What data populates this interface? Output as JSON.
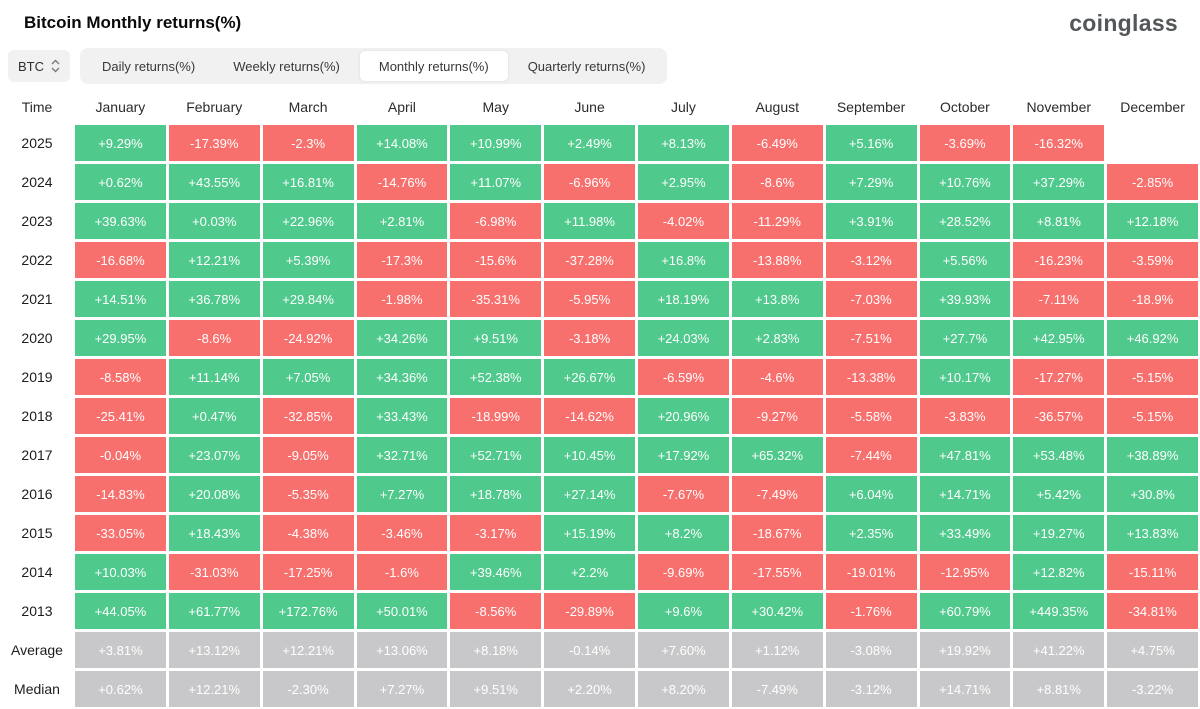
{
  "page": {
    "title": "Bitcoin Monthly returns(%)",
    "logo": "coinglass"
  },
  "controls": {
    "symbol_select": {
      "value": "BTC"
    },
    "tabs": [
      {
        "label": "Daily returns(%)",
        "active": false
      },
      {
        "label": "Weekly returns(%)",
        "active": false
      },
      {
        "label": "Monthly returns(%)",
        "active": true
      },
      {
        "label": "Quarterly returns(%)",
        "active": false
      }
    ]
  },
  "chart_data": {
    "type": "heatmap",
    "title": "Bitcoin Monthly returns(%)",
    "row_header": "Time",
    "columns": [
      "January",
      "February",
      "March",
      "April",
      "May",
      "June",
      "July",
      "August",
      "September",
      "October",
      "November",
      "December"
    ],
    "rows": [
      {
        "label": "2025",
        "kind": "year",
        "values": [
          "+9.29%",
          "-17.39%",
          "-2.3%",
          "+14.08%",
          "+10.99%",
          "+2.49%",
          "+8.13%",
          "-6.49%",
          "+5.16%",
          "-3.69%",
          "-16.32%",
          null
        ]
      },
      {
        "label": "2024",
        "kind": "year",
        "values": [
          "+0.62%",
          "+43.55%",
          "+16.81%",
          "-14.76%",
          "+11.07%",
          "-6.96%",
          "+2.95%",
          "-8.6%",
          "+7.29%",
          "+10.76%",
          "+37.29%",
          "-2.85%"
        ]
      },
      {
        "label": "2023",
        "kind": "year",
        "values": [
          "+39.63%",
          "+0.03%",
          "+22.96%",
          "+2.81%",
          "-6.98%",
          "+11.98%",
          "-4.02%",
          "-11.29%",
          "+3.91%",
          "+28.52%",
          "+8.81%",
          "+12.18%"
        ]
      },
      {
        "label": "2022",
        "kind": "year",
        "values": [
          "-16.68%",
          "+12.21%",
          "+5.39%",
          "-17.3%",
          "-15.6%",
          "-37.28%",
          "+16.8%",
          "-13.88%",
          "-3.12%",
          "+5.56%",
          "-16.23%",
          "-3.59%"
        ]
      },
      {
        "label": "2021",
        "kind": "year",
        "values": [
          "+14.51%",
          "+36.78%",
          "+29.84%",
          "-1.98%",
          "-35.31%",
          "-5.95%",
          "+18.19%",
          "+13.8%",
          "-7.03%",
          "+39.93%",
          "-7.11%",
          "-18.9%"
        ]
      },
      {
        "label": "2020",
        "kind": "year",
        "values": [
          "+29.95%",
          "-8.6%",
          "-24.92%",
          "+34.26%",
          "+9.51%",
          "-3.18%",
          "+24.03%",
          "+2.83%",
          "-7.51%",
          "+27.7%",
          "+42.95%",
          "+46.92%"
        ]
      },
      {
        "label": "2019",
        "kind": "year",
        "values": [
          "-8.58%",
          "+11.14%",
          "+7.05%",
          "+34.36%",
          "+52.38%",
          "+26.67%",
          "-6.59%",
          "-4.6%",
          "-13.38%",
          "+10.17%",
          "-17.27%",
          "-5.15%"
        ]
      },
      {
        "label": "2018",
        "kind": "year",
        "values": [
          "-25.41%",
          "+0.47%",
          "-32.85%",
          "+33.43%",
          "-18.99%",
          "-14.62%",
          "+20.96%",
          "-9.27%",
          "-5.58%",
          "-3.83%",
          "-36.57%",
          "-5.15%"
        ]
      },
      {
        "label": "2017",
        "kind": "year",
        "values": [
          "-0.04%",
          "+23.07%",
          "-9.05%",
          "+32.71%",
          "+52.71%",
          "+10.45%",
          "+17.92%",
          "+65.32%",
          "-7.44%",
          "+47.81%",
          "+53.48%",
          "+38.89%"
        ]
      },
      {
        "label": "2016",
        "kind": "year",
        "values": [
          "-14.83%",
          "+20.08%",
          "-5.35%",
          "+7.27%",
          "+18.78%",
          "+27.14%",
          "-7.67%",
          "-7.49%",
          "+6.04%",
          "+14.71%",
          "+5.42%",
          "+30.8%"
        ]
      },
      {
        "label": "2015",
        "kind": "year",
        "values": [
          "-33.05%",
          "+18.43%",
          "-4.38%",
          "-3.46%",
          "-3.17%",
          "+15.19%",
          "+8.2%",
          "-18.67%",
          "+2.35%",
          "+33.49%",
          "+19.27%",
          "+13.83%"
        ]
      },
      {
        "label": "2014",
        "kind": "year",
        "values": [
          "+10.03%",
          "-31.03%",
          "-17.25%",
          "-1.6%",
          "+39.46%",
          "+2.2%",
          "-9.69%",
          "-17.55%",
          "-19.01%",
          "-12.95%",
          "+12.82%",
          "-15.11%"
        ]
      },
      {
        "label": "2013",
        "kind": "year",
        "values": [
          "+44.05%",
          "+61.77%",
          "+172.76%",
          "+50.01%",
          "-8.56%",
          "-29.89%",
          "+9.6%",
          "+30.42%",
          "-1.76%",
          "+60.79%",
          "+449.35%",
          "-34.81%"
        ]
      },
      {
        "label": "Average",
        "kind": "summary",
        "values": [
          "+3.81%",
          "+13.12%",
          "+12.21%",
          "+13.06%",
          "+8.18%",
          "-0.14%",
          "+7.60%",
          "+1.12%",
          "-3.08%",
          "+19.92%",
          "+41.22%",
          "+4.75%"
        ]
      },
      {
        "label": "Median",
        "kind": "summary",
        "values": [
          "+0.62%",
          "+12.21%",
          "-2.30%",
          "+7.27%",
          "+9.51%",
          "+2.20%",
          "+8.20%",
          "-7.49%",
          "-3.12%",
          "+14.71%",
          "+8.81%",
          "-3.22%"
        ]
      }
    ],
    "colors": {
      "positive": "#50c98c",
      "negative": "#f8706d",
      "summary": "#c8c8ca"
    },
    "legend": "cell color: green = positive monthly return, red = negative, gray = aggregate row"
  }
}
